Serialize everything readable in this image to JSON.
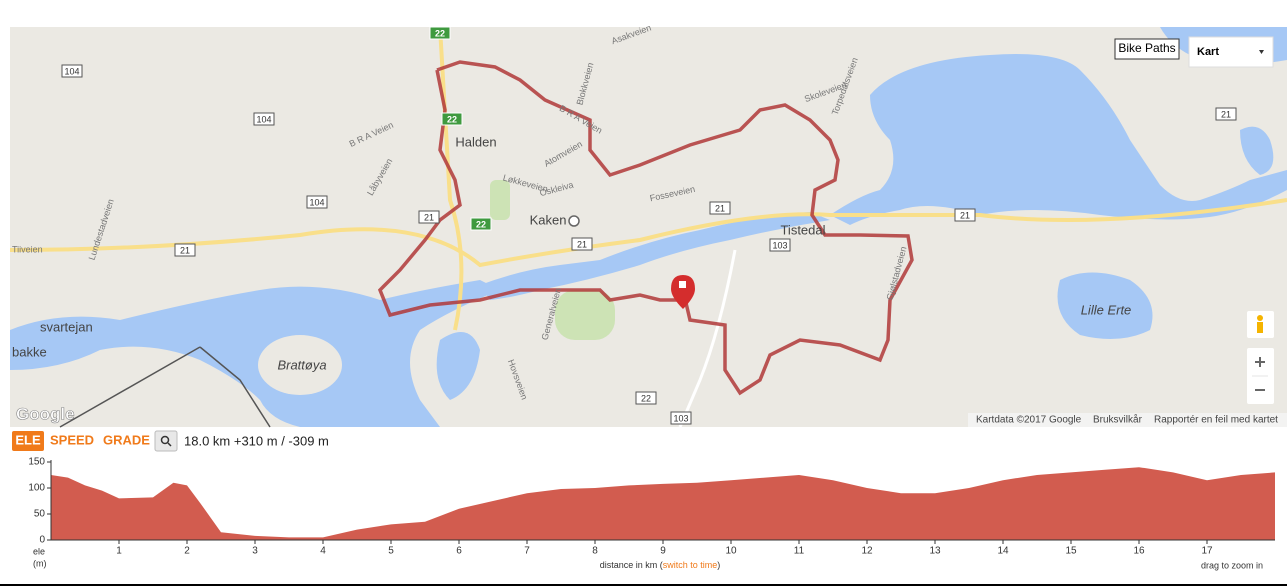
{
  "map": {
    "places": [
      "Halden",
      "Kaken",
      "Tistedal",
      "Brattøya",
      "Lille Erte",
      "svartejan",
      "bakke"
    ],
    "streets": [
      "Asakveien",
      "B R A Veien",
      "Blokkveien",
      "Skoleveien",
      "Torpedalsveien",
      "Atomveien",
      "Løkkeveien",
      "Oskleiva",
      "Fosseveien",
      "Lundestadveien",
      "Låbyveien",
      "Generalveien",
      "Hovsveien",
      "Gjølstadveien",
      "Tiiveien"
    ],
    "shields": [
      "22",
      "22",
      "22",
      "104",
      "104",
      "104",
      "21",
      "21",
      "21",
      "21",
      "21",
      "21",
      "103",
      "22",
      "103"
    ],
    "bike_paths": "Bike Paths",
    "map_type": "Kart",
    "logo": "Google",
    "attribution": [
      "Kartdata ©2017 Google",
      "Bruksvilkår",
      "Rapportér en feil med kartet"
    ]
  },
  "profile": {
    "tabs": [
      "ELE",
      "SPEED",
      "GRADE"
    ],
    "summary": "18.0 km +310 m / -309 m"
  },
  "chart_data": {
    "type": "area",
    "color": "#d25c4f",
    "x": [
      0,
      0.25,
      0.5,
      0.75,
      1,
      1.5,
      1.8,
      2,
      2.2,
      2.5,
      3,
      3.5,
      4,
      4.5,
      5,
      5.5,
      6,
      6.5,
      7,
      7.5,
      8,
      8.5,
      9,
      9.5,
      10,
      10.5,
      11,
      11.5,
      12,
      12.5,
      13,
      13.5,
      14,
      14.5,
      15,
      15.5,
      16,
      16.5,
      17,
      17.5,
      18
    ],
    "values": [
      125,
      120,
      105,
      95,
      80,
      82,
      110,
      105,
      70,
      15,
      8,
      5,
      5,
      20,
      30,
      35,
      60,
      75,
      90,
      98,
      100,
      105,
      108,
      110,
      115,
      120,
      125,
      115,
      100,
      90,
      90,
      100,
      115,
      125,
      130,
      135,
      140,
      130,
      115,
      125,
      130
    ],
    "xlim": [
      0,
      18
    ],
    "ylim": [
      0,
      150
    ],
    "xticks": [
      1,
      2,
      3,
      4,
      5,
      6,
      7,
      8,
      9,
      10,
      11,
      12,
      13,
      14,
      15,
      16,
      17
    ],
    "yticks": [
      0,
      50,
      100,
      150
    ],
    "y_label": "ele",
    "y_unit": "(m)",
    "x_label": [
      "distance in km (",
      "switch to time",
      ")"
    ],
    "hint": "drag to zoom in"
  }
}
